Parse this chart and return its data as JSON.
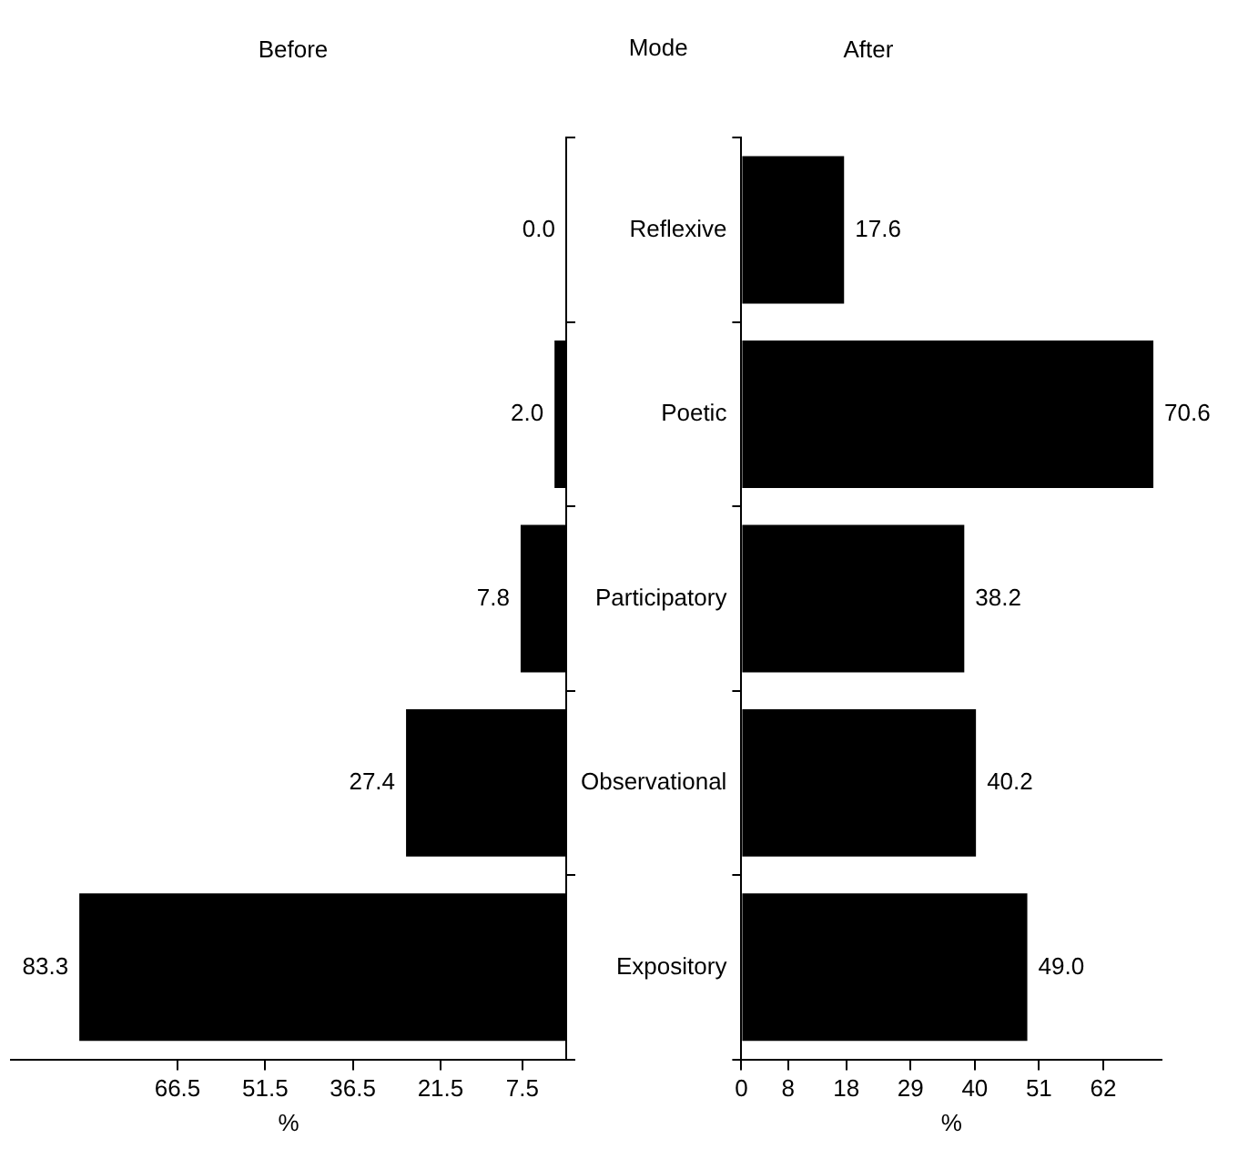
{
  "chart_data": [
    {
      "type": "bar",
      "orientation": "horizontal",
      "title": "Before",
      "xlabel": "%",
      "categories": [
        null,
        null,
        null,
        null,
        null
      ],
      "values": [
        0.0,
        2.0,
        7.8,
        27.4,
        83.3
      ],
      "value_labels": [
        "0.0",
        "2.0",
        "7.8",
        "27.4",
        "83.3"
      ],
      "color": "#000000",
      "xlim": [
        95,
        0
      ],
      "xticks": [
        66.5,
        51.5,
        36.5,
        21.5,
        7.5
      ],
      "grid": false,
      "legend": false,
      "tick_labels": "x"
    },
    {
      "type": "bar",
      "orientation": "horizontal",
      "title": "After",
      "xlabel": "%",
      "ylabel": "Mode",
      "categories": [
        "Reflexive",
        "Poetic",
        "Participatory",
        "Observational",
        "Expository"
      ],
      "values": [
        17.6,
        70.6,
        38.2,
        40.2,
        49.0
      ],
      "value_labels": [
        "17.6",
        "70.6",
        "38.2",
        "40.2",
        "49.0"
      ],
      "color": "#000000",
      "xlim": [
        0,
        72
      ],
      "xticks": [
        0,
        8,
        18,
        29,
        40,
        51,
        62
      ],
      "grid": false,
      "legend": false
    }
  ]
}
